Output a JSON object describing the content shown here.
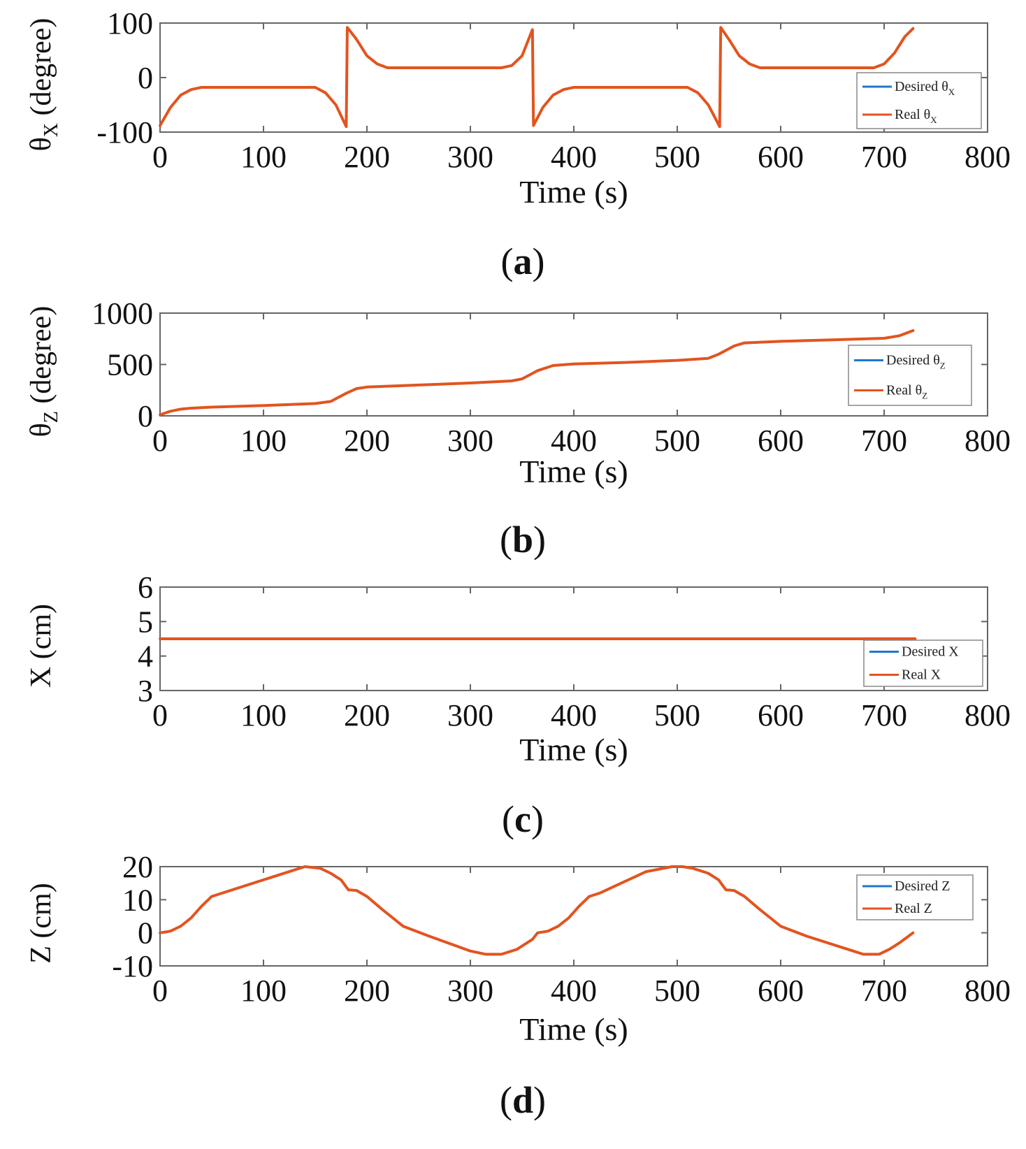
{
  "colors": {
    "desired": "#1f77d0",
    "real": "#e2541f",
    "axis": "#666666"
  },
  "chart_data": [
    {
      "type": "line",
      "panel": "a",
      "caption": {
        "open": "(",
        "letter": "a",
        "close": ")"
      },
      "xlabel": "Time (s)",
      "ylabel": {
        "main": "θ",
        "sub": "X",
        "rest": " (degree)"
      },
      "xlim": [
        0,
        800
      ],
      "ylim": [
        -100,
        100
      ],
      "xticks": [
        0,
        100,
        200,
        300,
        400,
        500,
        600,
        700,
        800
      ],
      "yticks": [
        -100,
        0,
        100
      ],
      "legend": {
        "position": "right",
        "entries": [
          {
            "main": "Desired θ",
            "sub": "X"
          },
          {
            "main": "Real θ",
            "sub": "X"
          }
        ]
      },
      "series": [
        {
          "name": "Desired θX",
          "color_key": "desired",
          "x": [
            0,
            10,
            20,
            30,
            40,
            150,
            160,
            170,
            180,
            181,
            190,
            200,
            210,
            220,
            330,
            340,
            350,
            360,
            361,
            370,
            380,
            390,
            400,
            510,
            520,
            530,
            541,
            542,
            550,
            560,
            570,
            580,
            690,
            700,
            710,
            720,
            728
          ],
          "y": [
            -88,
            -55,
            -32,
            -22,
            -18,
            -18,
            -28,
            -50,
            -90,
            92,
            70,
            40,
            25,
            18,
            18,
            22,
            40,
            88,
            -88,
            -55,
            -32,
            -22,
            -18,
            -18,
            -28,
            -50,
            -90,
            92,
            70,
            40,
            25,
            18,
            18,
            25,
            45,
            75,
            90
          ]
        },
        {
          "name": "Real θX",
          "color_key": "real",
          "x": [
            0,
            10,
            20,
            30,
            40,
            150,
            160,
            170,
            180,
            181,
            190,
            200,
            210,
            220,
            330,
            340,
            350,
            360,
            361,
            370,
            380,
            390,
            400,
            510,
            520,
            530,
            541,
            542,
            550,
            560,
            570,
            580,
            690,
            700,
            710,
            720,
            728
          ],
          "y": [
            -88,
            -55,
            -32,
            -22,
            -18,
            -18,
            -28,
            -50,
            -90,
            92,
            70,
            40,
            25,
            18,
            18,
            22,
            40,
            88,
            -88,
            -55,
            -32,
            -22,
            -18,
            -18,
            -28,
            -50,
            -90,
            92,
            70,
            40,
            25,
            18,
            18,
            25,
            45,
            75,
            90
          ]
        }
      ]
    },
    {
      "type": "line",
      "panel": "b",
      "caption": {
        "open": "(",
        "letter": "b",
        "close": ")"
      },
      "xlabel": "Time (s)",
      "ylabel": {
        "main": "θ",
        "sub": "Z",
        "rest": " (degree)"
      },
      "xlim": [
        0,
        800
      ],
      "ylim": [
        0,
        1000
      ],
      "xticks": [
        0,
        100,
        200,
        300,
        400,
        500,
        600,
        700,
        800
      ],
      "yticks": [
        0,
        500,
        1000
      ],
      "legend": {
        "position": "right",
        "entries": [
          {
            "main": "Desired θ",
            "sub": "Z"
          },
          {
            "main": "Real θ",
            "sub": "Z"
          }
        ]
      },
      "series": [
        {
          "name": "Desired θZ",
          "color_key": "desired",
          "x": [
            0,
            10,
            20,
            30,
            50,
            100,
            150,
            165,
            180,
            190,
            200,
            250,
            300,
            340,
            350,
            365,
            380,
            400,
            450,
            500,
            530,
            540,
            555,
            565,
            600,
            650,
            700,
            715,
            728
          ],
          "y": [
            10,
            45,
            65,
            75,
            85,
            100,
            120,
            140,
            220,
            265,
            280,
            300,
            320,
            340,
            360,
            440,
            490,
            505,
            520,
            540,
            560,
            600,
            680,
            710,
            725,
            740,
            755,
            780,
            830
          ]
        },
        {
          "name": "Real θZ",
          "color_key": "real",
          "x": [
            0,
            10,
            20,
            30,
            50,
            100,
            150,
            165,
            180,
            190,
            200,
            250,
            300,
            340,
            350,
            365,
            380,
            400,
            450,
            500,
            530,
            540,
            555,
            565,
            600,
            650,
            700,
            715,
            728
          ],
          "y": [
            10,
            45,
            65,
            75,
            85,
            100,
            120,
            140,
            220,
            265,
            280,
            300,
            320,
            340,
            360,
            440,
            490,
            505,
            520,
            540,
            560,
            600,
            680,
            710,
            725,
            740,
            755,
            780,
            830
          ]
        }
      ]
    },
    {
      "type": "line",
      "panel": "c",
      "caption": {
        "open": "(",
        "letter": "c",
        "close": ")"
      },
      "xlabel": "Time (s)",
      "ylabel": {
        "main": "X",
        "sub": "",
        "rest": " (cm)"
      },
      "xlim": [
        0,
        800
      ],
      "ylim": [
        3,
        6
      ],
      "xticks": [
        0,
        100,
        200,
        300,
        400,
        500,
        600,
        700,
        800
      ],
      "yticks": [
        3,
        4,
        5,
        6
      ],
      "legend": {
        "position": "right",
        "entries": [
          {
            "main": "Desired X",
            "sub": ""
          },
          {
            "main": "Real X",
            "sub": ""
          }
        ]
      },
      "series": [
        {
          "name": "Desired X",
          "color_key": "desired",
          "x": [
            0,
            730
          ],
          "y": [
            4.5,
            4.5
          ]
        },
        {
          "name": "Real X",
          "color_key": "real",
          "x": [
            0,
            730
          ],
          "y": [
            4.5,
            4.5
          ]
        }
      ]
    },
    {
      "type": "line",
      "panel": "d",
      "caption": {
        "open": "(",
        "letter": "d",
        "close": ")"
      },
      "xlabel": "Time (s)",
      "ylabel": {
        "main": "Z",
        "sub": "",
        "rest": " (cm)"
      },
      "xlim": [
        0,
        800
      ],
      "ylim": [
        -10,
        20
      ],
      "xticks": [
        0,
        100,
        200,
        300,
        400,
        500,
        600,
        700,
        800
      ],
      "yticks": [
        -10,
        0,
        10,
        20
      ],
      "legend": {
        "position": "right",
        "entries": [
          {
            "main": "Desired Z",
            "sub": ""
          },
          {
            "main": "Real Z",
            "sub": ""
          }
        ]
      },
      "series": [
        {
          "name": "Desired Z",
          "color_key": "desired",
          "x": [
            0,
            10,
            20,
            30,
            40,
            50,
            60,
            100,
            130,
            140,
            155,
            165,
            175,
            182,
            190,
            200,
            215,
            235,
            260,
            300,
            315,
            330,
            345,
            360,
            365,
            375,
            385,
            395,
            405,
            415,
            425,
            470,
            495,
            505,
            515,
            530,
            540,
            547,
            555,
            565,
            580,
            600,
            625,
            670,
            680,
            695,
            705,
            715,
            728
          ],
          "y": [
            0,
            0.5,
            2,
            4.5,
            8,
            11,
            12,
            16,
            19,
            20,
            19.5,
            18,
            16,
            13,
            12.8,
            11,
            7,
            2,
            -1,
            -5.5,
            -6.5,
            -6.5,
            -5,
            -2,
            0,
            0.5,
            2,
            4.5,
            8,
            11,
            12,
            18.5,
            20,
            20,
            19.5,
            18,
            16,
            13,
            12.8,
            11,
            7,
            2,
            -1,
            -5.5,
            -6.5,
            -6.5,
            -5,
            -3,
            0
          ]
        },
        {
          "name": "Real Z",
          "color_key": "real",
          "x": [
            0,
            10,
            20,
            30,
            40,
            50,
            60,
            100,
            130,
            140,
            155,
            165,
            175,
            182,
            190,
            200,
            215,
            235,
            260,
            300,
            315,
            330,
            345,
            360,
            365,
            375,
            385,
            395,
            405,
            415,
            425,
            470,
            495,
            505,
            515,
            530,
            540,
            547,
            555,
            565,
            580,
            600,
            625,
            670,
            680,
            695,
            705,
            715,
            728
          ],
          "y": [
            0,
            0.5,
            2,
            4.5,
            8,
            11,
            12,
            16,
            19,
            20,
            19.5,
            18,
            16,
            13,
            12.8,
            11,
            7,
            2,
            -1,
            -5.5,
            -6.5,
            -6.5,
            -5,
            -2,
            0,
            0.5,
            2,
            4.5,
            8,
            11,
            12,
            18.5,
            20,
            20,
            19.5,
            18,
            16,
            13,
            12.8,
            11,
            7,
            2,
            -1,
            -5.5,
            -6.5,
            -6.5,
            -5,
            -3,
            0
          ]
        }
      ]
    }
  ]
}
